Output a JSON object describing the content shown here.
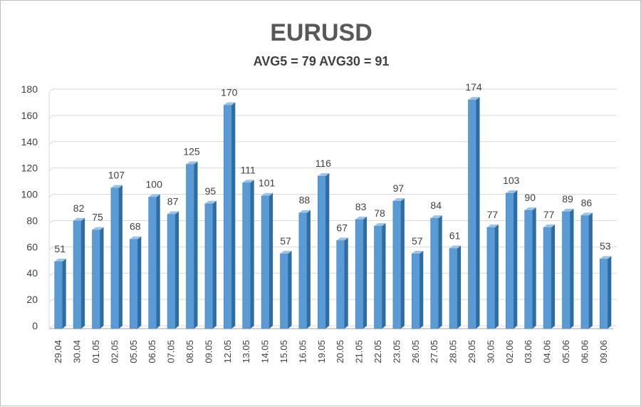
{
  "chart_data": {
    "type": "bar",
    "title": "EURUSD",
    "subtitle": "AVG5 = 79 AVG30 = 91",
    "xlabel": "",
    "ylabel": "",
    "ylim": [
      0,
      180
    ],
    "yticks": [
      "0",
      "20",
      "40",
      "60",
      "80",
      "100",
      "120",
      "140",
      "160",
      "180"
    ],
    "grid": true,
    "legend": "none",
    "categories": [
      "29.04",
      "30.04",
      "01.05",
      "02.05",
      "05.05",
      "06.05",
      "07.05",
      "08.05",
      "09.05",
      "12.05",
      "13.05",
      "14.05",
      "15.05",
      "16.05",
      "19.05",
      "20.05",
      "21.05",
      "22.05",
      "23.05",
      "26.05",
      "27.05",
      "28.05",
      "29.05",
      "30.05",
      "02.06",
      "03.06",
      "04.06",
      "05.06",
      "06.06",
      "09.06"
    ],
    "values": [
      51,
      82,
      75,
      107,
      68,
      100,
      87,
      125,
      95,
      170,
      111,
      101,
      57,
      88,
      116,
      67,
      83,
      78,
      97,
      57,
      84,
      61,
      174,
      77,
      103,
      90,
      77,
      89,
      86,
      53
    ],
    "colors": {
      "bar_front": "#5b9bd5",
      "bar_side": "#2e6da4",
      "bar_top": "#9cc3e6",
      "grid": "#d9d9d9",
      "axis": "#a6a6a6",
      "text": "#404040"
    }
  }
}
